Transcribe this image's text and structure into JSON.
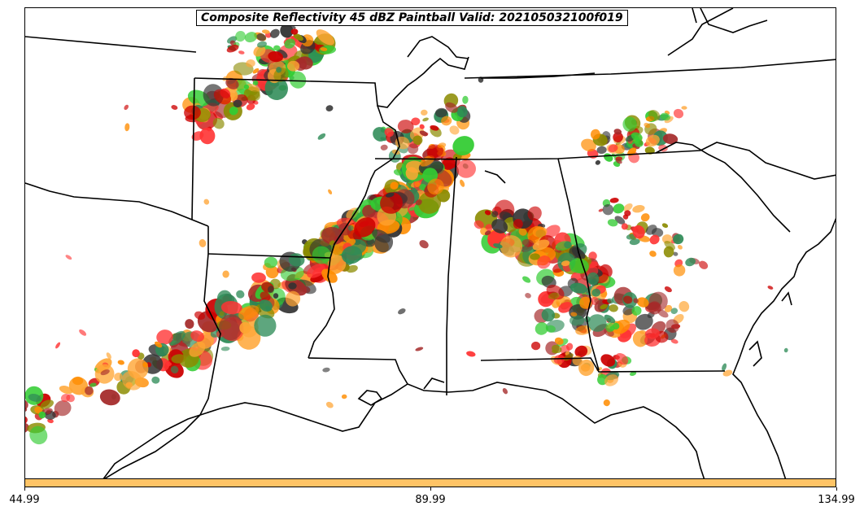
{
  "title": "Composite Reflectivity 45 dBZ Paintball Valid: 202105032100f019",
  "colors": {
    "background": "#ffffff",
    "boundary": "#000000",
    "colorbar": "#ffc466",
    "paintball": [
      "#33cc33",
      "#2e8b57",
      "#8b8b00",
      "#ff3333",
      "#cc0000",
      "#ff8c00",
      "#ffa533",
      "#a52a2a",
      "#333333"
    ]
  },
  "colorbar": {
    "ticks": [
      "44.99",
      "89.99",
      "134.99"
    ]
  },
  "chart_data": {
    "type": "map",
    "title": "Composite Reflectivity 45 dBZ Paintball Valid: 202105032100f019",
    "colorbar_ticks": [
      44.99,
      89.99,
      134.99
    ],
    "colorbar_range": [
      44.99,
      134.99
    ]
  }
}
